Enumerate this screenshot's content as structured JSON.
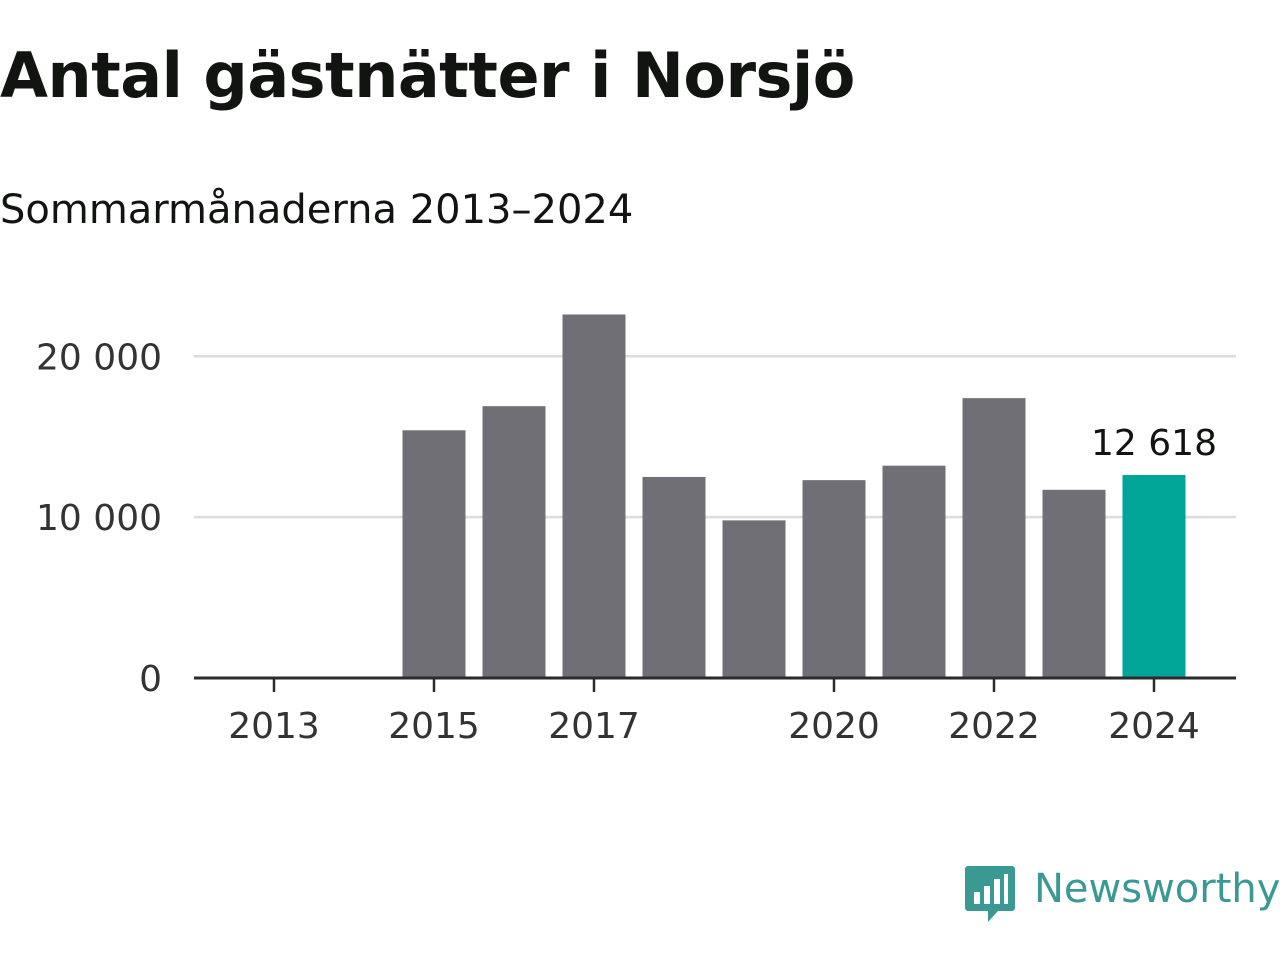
{
  "title": "Antal gästnätter i Norsjö",
  "subtitle": "Sommarmånaderna 2013–2024",
  "brand": {
    "name": "Newsworthy",
    "icon": "newsworthy-logo-icon",
    "color": "#3a9a93"
  },
  "chart_data": {
    "type": "bar",
    "categories": [
      2013,
      2014,
      2015,
      2016,
      2017,
      2018,
      2019,
      2020,
      2021,
      2022,
      2023,
      2024
    ],
    "values": [
      null,
      null,
      15400,
      16900,
      22600,
      12500,
      9800,
      12300,
      13200,
      17400,
      11700,
      12618
    ],
    "x_tick_labels": [
      "2013",
      "2015",
      "2017",
      "2020",
      "2022",
      "2024"
    ],
    "y_ticks": [
      0,
      10000,
      20000
    ],
    "y_tick_labels": [
      "0",
      "10 000",
      "20 000"
    ],
    "ylim": [
      0,
      23500
    ],
    "grid": true,
    "highlight": {
      "category": 2024,
      "label": "12 618"
    },
    "colors": {
      "bar": "#706f75",
      "highlight": "#00a598",
      "grid": "#dcdcdc",
      "axis": "#2b2b2b"
    }
  }
}
